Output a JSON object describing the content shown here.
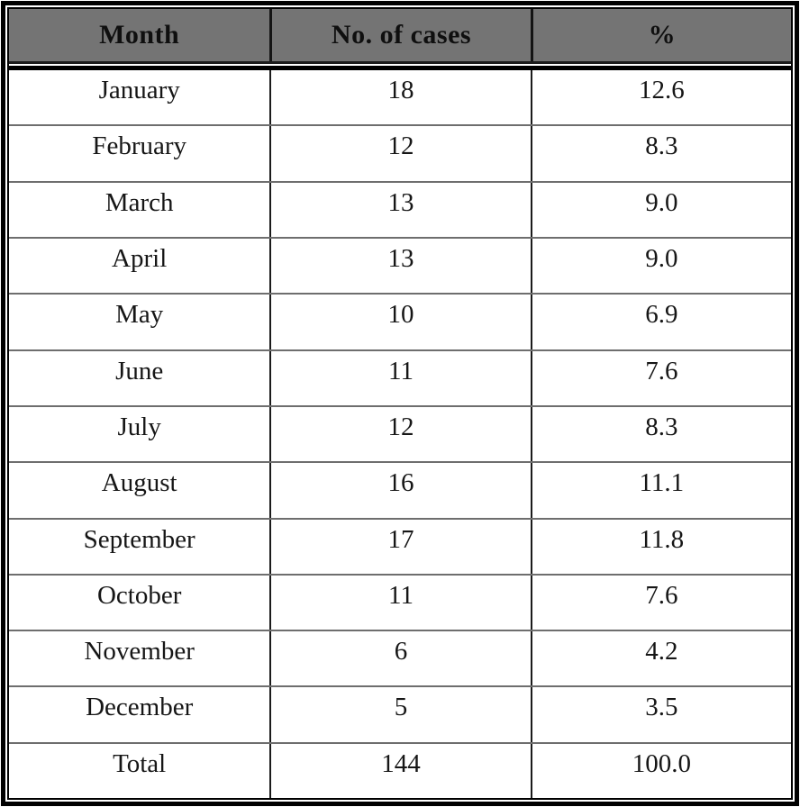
{
  "chart_data": {
    "type": "table",
    "columns": [
      "Month",
      "No. of cases",
      "%"
    ],
    "rows": [
      [
        "January",
        "18",
        "12.6"
      ],
      [
        "February",
        "12",
        "8.3"
      ],
      [
        "March",
        "13",
        "9.0"
      ],
      [
        "April",
        "13",
        "9.0"
      ],
      [
        "May",
        "10",
        "6.9"
      ],
      [
        "June",
        "11",
        "7.6"
      ],
      [
        "July",
        "12",
        "8.3"
      ],
      [
        "August",
        "16",
        "11.1"
      ],
      [
        "September",
        "17",
        "11.8"
      ],
      [
        "October",
        "11",
        "7.6"
      ],
      [
        "November",
        "6",
        "4.2"
      ],
      [
        "December",
        "5",
        "3.5"
      ],
      [
        "Total",
        "144",
        "100.0"
      ]
    ],
    "total_row_label": "Total",
    "total_cases": "144",
    "total_percent": "100.0",
    "layout": "header row shaded gray, body rows white, totals in last row"
  },
  "colors": {
    "header_background": "#747474",
    "border": "#000000",
    "row_divider": "#6e6e6e",
    "text": "#161616"
  }
}
